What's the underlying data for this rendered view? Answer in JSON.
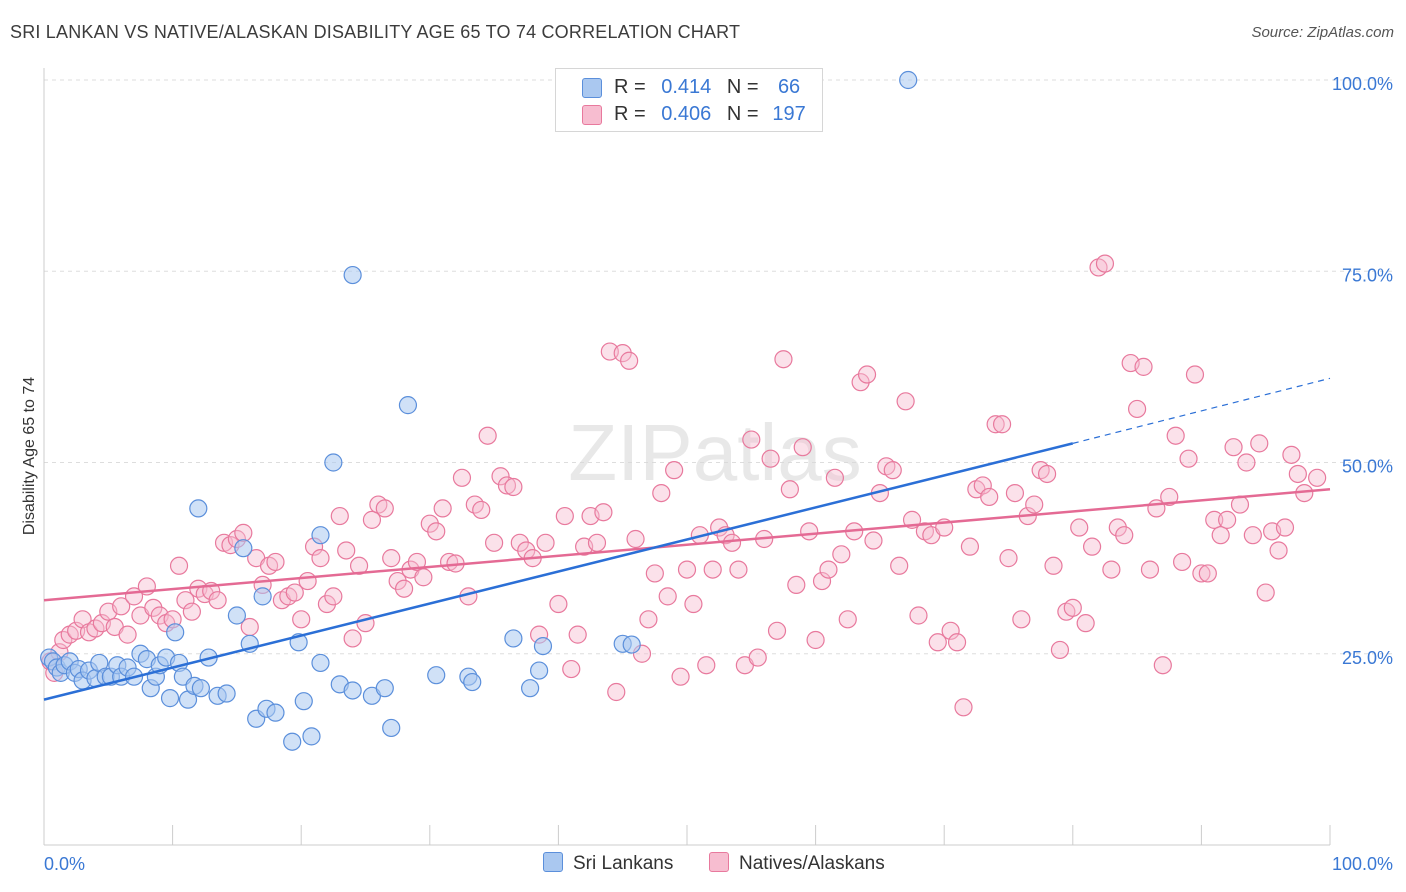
{
  "title": "SRI LANKAN VS NATIVE/ALASKAN DISABILITY AGE 65 TO 74 CORRELATION CHART",
  "source": "Source: ZipAtlas.com",
  "watermark": "ZIPatlas",
  "legend": {
    "r_label": "R =",
    "n_label": "N =",
    "rows": [
      {
        "r": "0.414",
        "n": "66"
      },
      {
        "r": "0.406",
        "n": "197"
      }
    ]
  },
  "colors": {
    "blue_fill": "#aac8f0",
    "blue_stroke": "#5b8fdb",
    "blue_line": "#2b6fd6",
    "pink_fill": "#f7bdd0",
    "pink_stroke": "#e8799d",
    "pink_line": "#e46a94",
    "tick_label": "#3a78d4",
    "grid": "#dddddd"
  },
  "chart_data": {
    "type": "scatter",
    "title": "SRI LANKAN VS NATIVE/ALASKAN DISABILITY AGE 65 TO 74 CORRELATION CHART",
    "xlabel": "",
    "ylabel": "Disability Age 65 to 74",
    "xlim": [
      0,
      100
    ],
    "ylim": [
      0,
      100
    ],
    "x_tick_labels": [
      "0.0%",
      "100.0%"
    ],
    "y_tick_labels": [
      "25.0%",
      "50.0%",
      "75.0%",
      "100.0%"
    ],
    "y_ticks": [
      25,
      50,
      75,
      100
    ],
    "grid": true,
    "legend_position": "bottom-center",
    "series": [
      {
        "name": "Sri Lankans",
        "r": 0.414,
        "n": 66,
        "trend": {
          "x0": 0,
          "y0": 19.0,
          "x1": 80,
          "y1": 52.5,
          "dash_to_x": 100,
          "dash_to_y": 61
        },
        "points": [
          [
            0.4,
            24.5
          ],
          [
            0.7,
            24.0
          ],
          [
            1.0,
            23.2
          ],
          [
            1.3,
            22.5
          ],
          [
            1.6,
            23.5
          ],
          [
            2.0,
            24.0
          ],
          [
            2.4,
            22.5
          ],
          [
            2.7,
            23.0
          ],
          [
            3.0,
            21.5
          ],
          [
            3.5,
            22.8
          ],
          [
            4.0,
            21.8
          ],
          [
            4.3,
            23.8
          ],
          [
            4.8,
            22.0
          ],
          [
            5.2,
            22.0
          ],
          [
            5.7,
            23.5
          ],
          [
            6.0,
            22.0
          ],
          [
            6.5,
            23.2
          ],
          [
            7.0,
            22.0
          ],
          [
            7.5,
            25.0
          ],
          [
            8.0,
            24.3
          ],
          [
            8.3,
            20.5
          ],
          [
            8.7,
            22.0
          ],
          [
            9.0,
            23.5
          ],
          [
            9.5,
            24.5
          ],
          [
            9.8,
            19.2
          ],
          [
            10.2,
            27.8
          ],
          [
            10.5,
            23.8
          ],
          [
            10.8,
            22.0
          ],
          [
            11.2,
            19.0
          ],
          [
            11.7,
            20.8
          ],
          [
            12.2,
            20.5
          ],
          [
            12.8,
            24.5
          ],
          [
            13.5,
            19.5
          ],
          [
            14.2,
            19.8
          ],
          [
            15.0,
            30.0
          ],
          [
            16.0,
            26.3
          ],
          [
            16.5,
            16.5
          ],
          [
            17.3,
            17.8
          ],
          [
            18.0,
            17.3
          ],
          [
            19.3,
            13.5
          ],
          [
            19.8,
            26.5
          ],
          [
            20.2,
            18.8
          ],
          [
            20.8,
            14.2
          ],
          [
            21.5,
            23.8
          ],
          [
            23.0,
            21.0
          ],
          [
            24.0,
            20.2
          ],
          [
            25.5,
            19.5
          ],
          [
            26.5,
            20.5
          ],
          [
            27.0,
            15.3
          ],
          [
            30.5,
            22.2
          ],
          [
            33.0,
            22.0
          ],
          [
            33.3,
            21.3
          ],
          [
            36.5,
            27.0
          ],
          [
            37.8,
            20.5
          ],
          [
            38.5,
            22.8
          ],
          [
            38.8,
            26.0
          ],
          [
            45.0,
            26.3
          ],
          [
            45.7,
            26.2
          ],
          [
            12.0,
            44.0
          ],
          [
            15.5,
            38.8
          ],
          [
            17.0,
            32.5
          ],
          [
            21.5,
            40.5
          ],
          [
            22.5,
            50.0
          ],
          [
            28.3,
            57.5
          ],
          [
            24.0,
            74.5
          ],
          [
            67.2,
            100.0
          ]
        ]
      },
      {
        "name": "Natives/Alaskans",
        "r": 0.406,
        "n": 197,
        "trend": {
          "x0": 0,
          "y0": 32.0,
          "x1": 100,
          "y1": 46.5
        },
        "points": [
          [
            0.5,
            24.0
          ],
          [
            0.8,
            22.5
          ],
          [
            1.2,
            25.2
          ],
          [
            1.5,
            26.8
          ],
          [
            2.0,
            27.5
          ],
          [
            2.5,
            28.0
          ],
          [
            3.0,
            29.5
          ],
          [
            3.5,
            27.8
          ],
          [
            4.0,
            28.3
          ],
          [
            4.5,
            29.0
          ],
          [
            5.0,
            30.5
          ],
          [
            5.5,
            28.5
          ],
          [
            6.0,
            31.2
          ],
          [
            6.5,
            27.5
          ],
          [
            7.0,
            32.5
          ],
          [
            7.5,
            30.0
          ],
          [
            8.0,
            33.8
          ],
          [
            8.5,
            31.0
          ],
          [
            9.0,
            30.0
          ],
          [
            9.5,
            29.0
          ],
          [
            10.0,
            29.5
          ],
          [
            10.5,
            36.5
          ],
          [
            11.0,
            32.0
          ],
          [
            11.5,
            30.5
          ],
          [
            12.0,
            33.5
          ],
          [
            12.5,
            32.8
          ],
          [
            13.0,
            33.2
          ],
          [
            13.5,
            32.0
          ],
          [
            14.0,
            39.5
          ],
          [
            14.5,
            39.2
          ],
          [
            15.0,
            40.0
          ],
          [
            15.5,
            40.8
          ],
          [
            16.0,
            28.5
          ],
          [
            16.5,
            37.5
          ],
          [
            17.0,
            34.0
          ],
          [
            17.5,
            36.5
          ],
          [
            18.0,
            37.0
          ],
          [
            18.5,
            32.0
          ],
          [
            19.0,
            32.5
          ],
          [
            19.5,
            33.0
          ],
          [
            20.0,
            29.5
          ],
          [
            20.5,
            34.5
          ],
          [
            21.0,
            39.0
          ],
          [
            21.5,
            37.5
          ],
          [
            22.0,
            31.5
          ],
          [
            22.5,
            32.5
          ],
          [
            23.0,
            43.0
          ],
          [
            23.5,
            38.5
          ],
          [
            24.0,
            27.0
          ],
          [
            24.5,
            36.5
          ],
          [
            25.0,
            29.0
          ],
          [
            25.5,
            42.5
          ],
          [
            26.0,
            44.5
          ],
          [
            26.5,
            44.0
          ],
          [
            27.0,
            37.5
          ],
          [
            27.5,
            34.5
          ],
          [
            28.0,
            33.5
          ],
          [
            28.5,
            36.0
          ],
          [
            29.0,
            37.0
          ],
          [
            29.5,
            35.0
          ],
          [
            30.0,
            42.0
          ],
          [
            30.5,
            41.0
          ],
          [
            31.0,
            44.0
          ],
          [
            31.5,
            37.0
          ],
          [
            32.0,
            36.8
          ],
          [
            32.5,
            48.0
          ],
          [
            33.0,
            32.5
          ],
          [
            33.5,
            44.5
          ],
          [
            34.0,
            43.8
          ],
          [
            34.5,
            53.5
          ],
          [
            35.0,
            39.5
          ],
          [
            35.5,
            48.2
          ],
          [
            36.0,
            47.0
          ],
          [
            36.5,
            46.8
          ],
          [
            37.0,
            39.5
          ],
          [
            37.5,
            38.5
          ],
          [
            38.0,
            37.5
          ],
          [
            38.5,
            27.5
          ],
          [
            39.0,
            39.5
          ],
          [
            40.0,
            31.5
          ],
          [
            40.5,
            43.0
          ],
          [
            41.0,
            23.0
          ],
          [
            41.5,
            27.5
          ],
          [
            42.0,
            39.0
          ],
          [
            42.5,
            43.0
          ],
          [
            43.0,
            39.5
          ],
          [
            43.5,
            43.5
          ],
          [
            44.0,
            64.5
          ],
          [
            44.5,
            20.0
          ],
          [
            45.0,
            64.3
          ],
          [
            45.5,
            63.3
          ],
          [
            46.0,
            40.0
          ],
          [
            46.5,
            25.0
          ],
          [
            47.0,
            29.5
          ],
          [
            47.5,
            35.5
          ],
          [
            48.0,
            46.0
          ],
          [
            48.5,
            32.5
          ],
          [
            49.0,
            49.0
          ],
          [
            49.5,
            22.0
          ],
          [
            50.0,
            36.0
          ],
          [
            50.5,
            31.5
          ],
          [
            51.0,
            40.5
          ],
          [
            51.5,
            23.5
          ],
          [
            52.0,
            36.0
          ],
          [
            52.5,
            41.5
          ],
          [
            53.0,
            40.5
          ],
          [
            53.5,
            39.5
          ],
          [
            54.0,
            36.0
          ],
          [
            54.5,
            23.5
          ],
          [
            55.0,
            53.0
          ],
          [
            55.5,
            24.5
          ],
          [
            56.0,
            40.0
          ],
          [
            56.5,
            50.5
          ],
          [
            57.0,
            28.0
          ],
          [
            57.5,
            63.5
          ],
          [
            58.0,
            46.5
          ],
          [
            58.5,
            34.0
          ],
          [
            59.0,
            52.0
          ],
          [
            59.5,
            41.0
          ],
          [
            60.0,
            26.8
          ],
          [
            60.5,
            34.5
          ],
          [
            61.0,
            36.0
          ],
          [
            61.5,
            48.0
          ],
          [
            62.0,
            38.0
          ],
          [
            62.5,
            29.5
          ],
          [
            63.0,
            41.0
          ],
          [
            63.5,
            60.5
          ],
          [
            64.0,
            61.5
          ],
          [
            64.5,
            39.8
          ],
          [
            65.0,
            46.0
          ],
          [
            65.5,
            49.5
          ],
          [
            66.0,
            49.0
          ],
          [
            66.5,
            36.5
          ],
          [
            67.0,
            58.0
          ],
          [
            67.5,
            42.5
          ],
          [
            68.0,
            30.0
          ],
          [
            68.5,
            41.0
          ],
          [
            69.0,
            40.5
          ],
          [
            69.5,
            26.5
          ],
          [
            70.0,
            41.5
          ],
          [
            70.5,
            28.0
          ],
          [
            71.0,
            26.5
          ],
          [
            71.5,
            18.0
          ],
          [
            72.0,
            39.0
          ],
          [
            72.5,
            46.5
          ],
          [
            73.0,
            47.0
          ],
          [
            73.5,
            45.5
          ],
          [
            74.0,
            55.0
          ],
          [
            74.5,
            55.0
          ],
          [
            75.0,
            37.5
          ],
          [
            75.5,
            46.0
          ],
          [
            76.0,
            29.5
          ],
          [
            76.5,
            43.0
          ],
          [
            77.0,
            44.5
          ],
          [
            77.5,
            49.0
          ],
          [
            78.0,
            48.5
          ],
          [
            78.5,
            36.5
          ],
          [
            79.0,
            25.5
          ],
          [
            79.5,
            30.5
          ],
          [
            80.0,
            31.0
          ],
          [
            80.5,
            41.5
          ],
          [
            81.0,
            29.0
          ],
          [
            81.5,
            39.0
          ],
          [
            82.0,
            75.5
          ],
          [
            82.5,
            76.0
          ],
          [
            83.0,
            36.0
          ],
          [
            83.5,
            41.5
          ],
          [
            84.0,
            40.5
          ],
          [
            84.5,
            63.0
          ],
          [
            85.0,
            57.0
          ],
          [
            85.5,
            62.5
          ],
          [
            86.0,
            36.0
          ],
          [
            86.5,
            44.0
          ],
          [
            87.0,
            23.5
          ],
          [
            87.5,
            45.5
          ],
          [
            88.0,
            53.5
          ],
          [
            88.5,
            37.0
          ],
          [
            89.0,
            50.5
          ],
          [
            89.5,
            61.5
          ],
          [
            90.0,
            35.5
          ],
          [
            90.5,
            35.5
          ],
          [
            91.0,
            42.5
          ],
          [
            91.5,
            40.5
          ],
          [
            92.0,
            42.5
          ],
          [
            92.5,
            52.0
          ],
          [
            93.0,
            44.5
          ],
          [
            93.5,
            50.0
          ],
          [
            94.0,
            40.5
          ],
          [
            94.5,
            52.5
          ],
          [
            95.0,
            33.0
          ],
          [
            95.5,
            41.0
          ],
          [
            96.0,
            38.5
          ],
          [
            96.5,
            41.5
          ],
          [
            97.0,
            51.0
          ],
          [
            97.5,
            48.5
          ],
          [
            98.0,
            46.0
          ],
          [
            99.0,
            48.0
          ]
        ]
      }
    ]
  },
  "bottom_legend": [
    "Sri Lankans",
    "Natives/Alaskans"
  ]
}
